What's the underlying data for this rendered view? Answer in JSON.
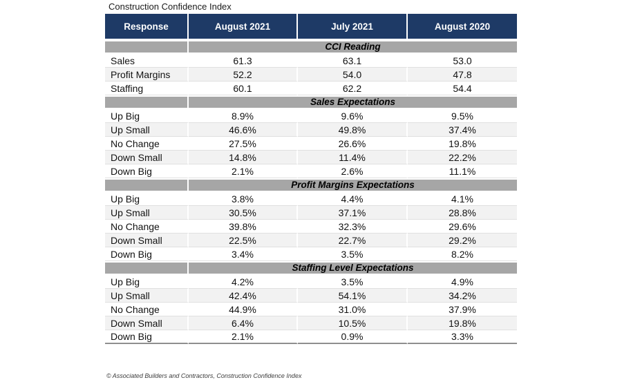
{
  "title": "Construction Confidence Index",
  "footer": "© Associated Builders and Contractors, Construction Confidence Index",
  "colors": {
    "header_bg": "#1E3A66",
    "header_text": "#FFFFFF",
    "section_bg": "#A6A6A6",
    "stripe_bg": "#F2F2F2",
    "row_line": "#E0E0E0",
    "bottom_line": "#8F8F8F"
  },
  "chart_data": {
    "type": "table",
    "title": "Construction Confidence Index",
    "columns": [
      "Response",
      "August 2021",
      "July 2021",
      "August 2020"
    ],
    "sections": [
      {
        "label": "CCI Reading",
        "rows": [
          {
            "label": "Sales",
            "values": [
              "61.3",
              "63.1",
              "53.0"
            ]
          },
          {
            "label": "Profit Margins",
            "values": [
              "52.2",
              "54.0",
              "47.8"
            ]
          },
          {
            "label": "Staffing",
            "values": [
              "60.1",
              "62.2",
              "54.4"
            ]
          }
        ]
      },
      {
        "label": "Sales Expectations",
        "rows": [
          {
            "label": "Up Big",
            "values": [
              "8.9%",
              "9.6%",
              "9.5%"
            ]
          },
          {
            "label": "Up Small",
            "values": [
              "46.6%",
              "49.8%",
              "37.4%"
            ]
          },
          {
            "label": "No Change",
            "values": [
              "27.5%",
              "26.6%",
              "19.8%"
            ]
          },
          {
            "label": "Down Small",
            "values": [
              "14.8%",
              "11.4%",
              "22.2%"
            ]
          },
          {
            "label": "Down Big",
            "values": [
              "2.1%",
              "2.6%",
              "11.1%"
            ]
          }
        ]
      },
      {
        "label": "Profit Margins Expectations",
        "rows": [
          {
            "label": "Up Big",
            "values": [
              "3.8%",
              "4.4%",
              "4.1%"
            ]
          },
          {
            "label": "Up Small",
            "values": [
              "30.5%",
              "37.1%",
              "28.8%"
            ]
          },
          {
            "label": "No Change",
            "values": [
              "39.8%",
              "32.3%",
              "29.6%"
            ]
          },
          {
            "label": "Down Small",
            "values": [
              "22.5%",
              "22.7%",
              "29.2%"
            ]
          },
          {
            "label": "Down Big",
            "values": [
              "3.4%",
              "3.5%",
              "8.2%"
            ]
          }
        ]
      },
      {
        "label": "Staffing Level Expectations",
        "rows": [
          {
            "label": "Up Big",
            "values": [
              "4.2%",
              "3.5%",
              "4.9%"
            ]
          },
          {
            "label": "Up Small",
            "values": [
              "42.4%",
              "54.1%",
              "34.2%"
            ]
          },
          {
            "label": "No Change",
            "values": [
              "44.9%",
              "31.0%",
              "37.9%"
            ]
          },
          {
            "label": "Down Small",
            "values": [
              "6.4%",
              "10.5%",
              "19.8%"
            ]
          },
          {
            "label": "Down Big",
            "values": [
              "2.1%",
              "0.9%",
              "3.3%"
            ]
          }
        ]
      }
    ]
  }
}
